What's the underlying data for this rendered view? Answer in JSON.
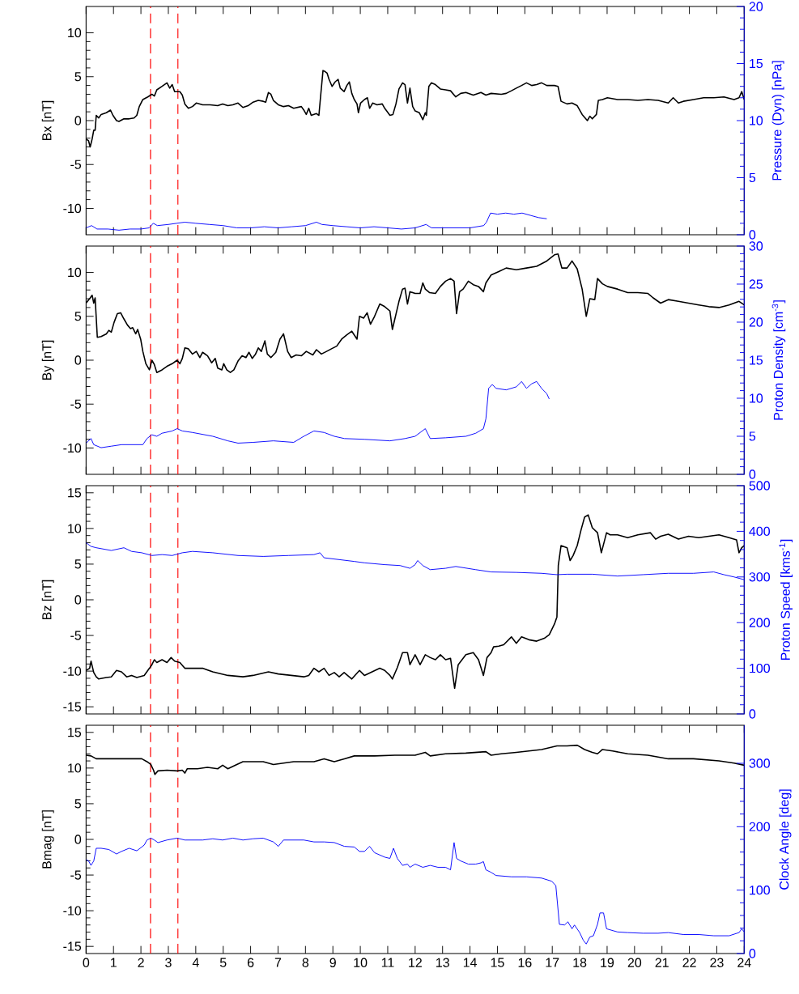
{
  "chart_data": [
    {
      "type": "line",
      "ylabel": "Bx [nT]",
      "y2label": "Pressure (Dyn) [nPa]",
      "tick_labels": "y",
      "xlim": [
        0,
        24
      ],
      "xticks": [
        0,
        1,
        2,
        3,
        4,
        5,
        6,
        7,
        8,
        9,
        10,
        11,
        12,
        13,
        14,
        15,
        16,
        17,
        18,
        19,
        20,
        21,
        22,
        23,
        24
      ],
      "ylim": [
        -13,
        13
      ],
      "yticks": [
        -10,
        -5,
        0,
        5,
        10
      ],
      "y2lim": [
        0,
        20
      ],
      "y2ticks": [
        0,
        5,
        10,
        15,
        20
      ],
      "ref_lines": [
        {
          "axis": "x",
          "value": 2.35,
          "color": "#ff0000",
          "line_style": "dashed"
        },
        {
          "axis": "x",
          "value": 3.35,
          "color": "#ff0000",
          "line_style": "dashed"
        }
      ],
      "series": [
        {
          "color": "#000000",
          "x": [
            0,
            0.09,
            0.15,
            0.22,
            0.28,
            0.33,
            0.37,
            0.46,
            0.55,
            0.74,
            0.89,
            0.98,
            1.11,
            1.2,
            1.38,
            1.57,
            1.75,
            1.85,
            1.94,
            2.07,
            2.25,
            2.4,
            2.49,
            2.58,
            2.77,
            2.95,
            3.05,
            3.14,
            3.23,
            3.42,
            3.51,
            3.6,
            3.73,
            3.88,
            4.02,
            4.25,
            4.52,
            4.8,
            4.98,
            5.17,
            5.35,
            5.54,
            5.72,
            5.91,
            6.09,
            6.28,
            6.46,
            6.55,
            6.65,
            6.74,
            6.83,
            7.01,
            7.2,
            7.38,
            7.57,
            7.85,
            7.94,
            8.03,
            8.12,
            8.21,
            8.4,
            8.49,
            8.55,
            8.64,
            8.71,
            8.79,
            8.86,
            8.97,
            9.08,
            9.19,
            9.27,
            9.41,
            9.51,
            9.6,
            9.69,
            9.78,
            9.88,
            9.93,
            10.01,
            10.15,
            10.26,
            10.34,
            10.45,
            10.61,
            10.8,
            10.89,
            11.08,
            11.19,
            11.3,
            11.41,
            11.54,
            11.63,
            11.72,
            11.81,
            11.91,
            12.0,
            12.15,
            12.28,
            12.37,
            12.41,
            12.5,
            12.59,
            12.74,
            12.92,
            13.11,
            13.29,
            13.48,
            13.66,
            13.85,
            14.12,
            14.4,
            14.58,
            14.77,
            15.14,
            15.32,
            15.51,
            15.69,
            15.88,
            16.06,
            16.25,
            16.43,
            16.61,
            16.8,
            17.08,
            17.21,
            17.32,
            17.54,
            17.72,
            17.91,
            18.09,
            18.28,
            18.37,
            18.46,
            18.61,
            18.68,
            18.83,
            19.01,
            19.38,
            19.75,
            20.12,
            20.49,
            20.86,
            21.23,
            21.41,
            21.6,
            21.78,
            22.15,
            22.52,
            22.89,
            23.26,
            23.63,
            23.81,
            23.91,
            24.0
          ],
          "values": [
            -2.1,
            -2.3,
            -3.0,
            -2.1,
            -1.1,
            -1.1,
            0.6,
            0.3,
            0.7,
            0.9,
            1.2,
            0.6,
            0,
            -0.1,
            0.2,
            0.2,
            0.3,
            0.6,
            1.6,
            2.4,
            2.7,
            3.0,
            2.8,
            3.5,
            3.9,
            4.3,
            3.7,
            4.1,
            3.3,
            3.3,
            2.9,
            1.9,
            1.4,
            1.6,
            2.0,
            1.8,
            1.8,
            1.7,
            1.9,
            1.7,
            1.8,
            2.0,
            1.5,
            1.7,
            2.1,
            2.3,
            2.2,
            2.1,
            3.2,
            3.0,
            2.3,
            1.8,
            1.6,
            1.7,
            1.4,
            1.6,
            1.2,
            0.7,
            1.4,
            0.6,
            0.8,
            0.6,
            2.7,
            5.7,
            5.6,
            5.4,
            4.7,
            3.9,
            4.4,
            4.7,
            3.7,
            3.3,
            4.0,
            4.4,
            3.1,
            2.4,
            1.9,
            0.9,
            2.0,
            2.4,
            2.6,
            1.4,
            2.0,
            1.8,
            1.9,
            1.4,
            0.6,
            0.7,
            1.9,
            3.6,
            4.3,
            4.1,
            2.0,
            3.7,
            1.6,
            1.1,
            0.9,
            0.1,
            0.9,
            0.6,
            3.9,
            4.3,
            4.1,
            3.6,
            3.5,
            3.4,
            2.7,
            3.1,
            3.2,
            2.9,
            3.2,
            2.9,
            3.1,
            3.0,
            3.1,
            3.4,
            3.7,
            4.0,
            4.3,
            4.0,
            4.1,
            4.3,
            4.0,
            4.0,
            3.9,
            2.2,
            1.9,
            2.0,
            1.7,
            0.7,
            0,
            0.5,
            0.2,
            0.7,
            2.3,
            2.4,
            2.6,
            2.4,
            2.4,
            2.3,
            2.4,
            2.3,
            2.0,
            2.6,
            2.0,
            2.2,
            2.4,
            2.6,
            2.6,
            2.7,
            2.4,
            2.6,
            3.3,
            2.4
          ]
        },
        {
          "color": "#0000ff",
          "axis": "y2",
          "x": [
            0,
            0.2,
            0.4,
            0.8,
            1.2,
            1.6,
            2.0,
            2.3,
            2.45,
            2.6,
            3.0,
            3.3,
            3.6,
            4.0,
            4.5,
            5.0,
            5.5,
            6.0,
            6.5,
            7.0,
            7.5,
            8.0,
            8.4,
            8.6,
            9.0,
            9.5,
            10.0,
            10.5,
            11.0,
            11.5,
            12.0,
            12.4,
            12.6,
            13.0,
            13.5,
            14.0,
            14.5,
            14.6,
            14.75,
            15.0,
            15.3,
            15.6,
            15.9,
            16.2,
            16.5,
            16.8
          ],
          "values": [
            0.6,
            0.8,
            0.5,
            0.5,
            0.4,
            0.5,
            0.5,
            0.6,
            1.0,
            0.8,
            0.9,
            1.0,
            1.1,
            1.0,
            0.9,
            0.8,
            0.6,
            0.6,
            0.7,
            0.6,
            0.7,
            0.8,
            1.1,
            0.9,
            0.8,
            0.7,
            0.6,
            0.7,
            0.6,
            0.5,
            0.6,
            0.9,
            0.6,
            0.6,
            0.6,
            0.6,
            0.8,
            1.1,
            1.9,
            1.8,
            1.9,
            1.8,
            1.9,
            1.7,
            1.5,
            1.4
          ]
        }
      ]
    },
    {
      "type": "line",
      "ylabel": "By [nT]",
      "y2label": "Proton Density [cm$^{-3}$]",
      "tick_labels": "y",
      "xlim": [
        0,
        24
      ],
      "xticks": [
        0,
        1,
        2,
        3,
        4,
        5,
        6,
        7,
        8,
        9,
        10,
        11,
        12,
        13,
        14,
        15,
        16,
        17,
        18,
        19,
        20,
        21,
        22,
        23,
        24
      ],
      "ylim": [
        -13,
        13
      ],
      "yticks": [
        -10,
        -5,
        0,
        5,
        10
      ],
      "y2lim": [
        0,
        30
      ],
      "y2ticks": [
        0,
        5,
        10,
        15,
        20,
        25,
        30
      ],
      "ref_lines": [
        {
          "axis": "x",
          "value": 2.35,
          "color": "#ff0000",
          "line_style": "dashed"
        },
        {
          "axis": "x",
          "value": 3.35,
          "color": "#ff0000",
          "line_style": "dashed"
        }
      ],
      "series": [
        {
          "color": "#000000",
          "x": [
            0,
            0.15,
            0.22,
            0.28,
            0.33,
            0.41,
            0.55,
            0.74,
            0.83,
            0.92,
            1.02,
            1.14,
            1.26,
            1.38,
            1.51,
            1.62,
            1.7,
            1.81,
            1.88,
            1.99,
            2.07,
            2.18,
            2.31,
            2.4,
            2.49,
            2.58,
            2.77,
            2.95,
            3.14,
            3.32,
            3.42,
            3.51,
            3.6,
            3.73,
            3.88,
            4.02,
            4.15,
            4.25,
            4.43,
            4.58,
            4.71,
            4.8,
            4.95,
            5.02,
            5.13,
            5.26,
            5.39,
            5.54,
            5.69,
            5.83,
            5.94,
            6.06,
            6.18,
            6.28,
            6.39,
            6.52,
            6.61,
            6.74,
            6.92,
            7.07,
            7.2,
            7.35,
            7.48,
            7.66,
            7.85,
            8.03,
            8.27,
            8.4,
            8.58,
            8.77,
            8.95,
            9.14,
            9.32,
            9.51,
            9.69,
            9.88,
            9.97,
            10.12,
            10.25,
            10.37,
            10.52,
            10.71,
            10.89,
            11.08,
            11.17,
            11.26,
            11.41,
            11.54,
            11.63,
            11.72,
            11.81,
            12.0,
            12.18,
            12.28,
            12.37,
            12.52,
            12.74,
            12.92,
            13.11,
            13.29,
            13.42,
            13.51,
            13.62,
            13.75,
            13.94,
            14.12,
            14.31,
            14.49,
            14.58,
            14.77,
            15.05,
            15.32,
            15.69,
            16.06,
            16.43,
            16.8,
            17.08,
            17.21,
            17.35,
            17.54,
            17.72,
            17.91,
            18.09,
            18.24,
            18.37,
            18.55,
            18.65,
            18.83,
            19.01,
            19.38,
            19.75,
            20.12,
            20.49,
            20.68,
            20.95,
            21.23,
            21.6,
            21.97,
            22.34,
            22.71,
            23.08,
            23.45,
            23.81,
            24.0
          ],
          "values": [
            6.5,
            7.1,
            7.4,
            6.5,
            7.1,
            2.6,
            2.7,
            3.0,
            3.4,
            3.2,
            4.3,
            5.3,
            5.4,
            4.7,
            4.0,
            3.6,
            3.7,
            3.0,
            3.5,
            2.4,
            1.0,
            -0.4,
            -1.1,
            0,
            -0.5,
            -1.4,
            -1.1,
            -0.7,
            -0.4,
            0,
            -0.4,
            0.2,
            1.4,
            1.3,
            0.7,
            1.0,
            0.3,
            0.9,
            0.5,
            -0.3,
            0.2,
            -0.9,
            -1.1,
            -0.4,
            -1.1,
            -1.4,
            -1.1,
            -0.1,
            0.5,
            0.3,
            0.9,
            0.2,
            0.7,
            1.4,
            1.0,
            2.2,
            0.7,
            0.3,
            0.9,
            2.4,
            3.0,
            1.0,
            0.3,
            0.6,
            0.5,
            1.0,
            0.6,
            1.2,
            0.7,
            1.0,
            1.3,
            1.6,
            2.4,
            2.9,
            3.3,
            2.4,
            5.0,
            4.8,
            5.4,
            4.1,
            5.0,
            6.4,
            6.1,
            5.6,
            3.5,
            4.7,
            6.7,
            8.1,
            8.2,
            6.4,
            7.8,
            7.6,
            7.6,
            8.8,
            8.1,
            7.7,
            7.6,
            8.4,
            9.0,
            9.3,
            9.0,
            5.3,
            7.8,
            8.1,
            9.0,
            8.6,
            8.4,
            7.8,
            8.8,
            9.7,
            10.1,
            10.5,
            10.3,
            10.5,
            10.7,
            11.3,
            12.0,
            12.1,
            10.5,
            10.5,
            11.3,
            10.4,
            8.1,
            5.0,
            7.0,
            6.9,
            9.3,
            8.7,
            8.4,
            8.1,
            7.7,
            7.7,
            7.6,
            7.1,
            6.5,
            6.9,
            6.7,
            6.5,
            6.3,
            6.1,
            6.0,
            6.3,
            6.7,
            6.3
          ]
        },
        {
          "color": "#0000ff",
          "axis": "y2",
          "x": [
            0,
            0.18,
            0.28,
            0.55,
            0.92,
            1.29,
            1.66,
            2.07,
            2.22,
            2.4,
            2.58,
            2.77,
            3.14,
            3.32,
            3.51,
            3.88,
            4.62,
            5.17,
            5.54,
            6.09,
            6.83,
            7.57,
            7.94,
            8.31,
            8.68,
            9.05,
            9.42,
            10.15,
            11.08,
            11.63,
            12.0,
            12.37,
            12.55,
            13.11,
            13.85,
            14.21,
            14.49,
            14.58,
            14.68,
            14.81,
            14.95,
            15.32,
            15.69,
            15.88,
            16.06,
            16.25,
            16.43,
            16.61,
            16.8,
            16.89
          ],
          "values": [
            4.1,
            4.7,
            3.9,
            3.5,
            3.7,
            3.9,
            3.9,
            3.9,
            4.7,
            5.2,
            5.0,
            5.4,
            5.7,
            6.0,
            5.7,
            5.5,
            5.0,
            4.4,
            4.1,
            4.2,
            4.4,
            4.2,
            5.0,
            5.7,
            5.5,
            5.0,
            4.7,
            4.6,
            4.4,
            4.7,
            5.0,
            6.0,
            4.7,
            4.8,
            5.0,
            5.4,
            6.0,
            7.3,
            11.3,
            11.8,
            11.3,
            11.1,
            11.5,
            12.2,
            11.3,
            11.9,
            12.2,
            11.3,
            10.6,
            9.9
          ]
        }
      ]
    },
    {
      "type": "line",
      "ylabel": "Bz [nT]",
      "y2label": "Proton Speed [kms$^{-1}$]",
      "tick_labels": "y",
      "xlim": [
        0,
        24
      ],
      "xticks": [
        0,
        1,
        2,
        3,
        4,
        5,
        6,
        7,
        8,
        9,
        10,
        11,
        12,
        13,
        14,
        15,
        16,
        17,
        18,
        19,
        20,
        21,
        22,
        23,
        24
      ],
      "ylim": [
        -16,
        16
      ],
      "yticks": [
        -15,
        -10,
        -5,
        0,
        5,
        10,
        15
      ],
      "y2lim": [
        0,
        500
      ],
      "y2ticks": [
        0,
        100,
        200,
        300,
        400,
        500
      ],
      "ref_lines": [
        {
          "axis": "x",
          "value": 2.35,
          "color": "#ff0000",
          "line_style": "dashed"
        },
        {
          "axis": "x",
          "value": 3.35,
          "color": "#ff0000",
          "line_style": "dashed"
        }
      ],
      "series": [
        {
          "color": "#000000",
          "x": [
            0,
            0.13,
            0.18,
            0.28,
            0.37,
            0.46,
            0.74,
            0.92,
            1.11,
            1.29,
            1.48,
            1.66,
            1.85,
            2.12,
            2.31,
            2.4,
            2.49,
            2.58,
            2.77,
            2.95,
            3.1,
            3.23,
            3.42,
            3.6,
            3.88,
            4.25,
            4.62,
            5.17,
            5.72,
            6.09,
            6.65,
            7.01,
            7.48,
            7.94,
            8.12,
            8.31,
            8.49,
            8.68,
            8.86,
            9.05,
            9.23,
            9.41,
            9.69,
            9.97,
            10.15,
            10.43,
            10.71,
            10.89,
            11.08,
            11.17,
            11.35,
            11.54,
            11.72,
            11.81,
            12.0,
            12.18,
            12.37,
            12.55,
            12.74,
            12.92,
            13.11,
            13.29,
            13.44,
            13.57,
            13.85,
            14.12,
            14.31,
            14.49,
            14.62,
            14.77,
            14.86,
            15.05,
            15.23,
            15.51,
            15.69,
            15.88,
            16.15,
            16.43,
            16.71,
            16.89,
            17.08,
            17.17,
            17.22,
            17.32,
            17.54,
            17.65,
            17.76,
            17.91,
            18.05,
            18.18,
            18.31,
            18.46,
            18.65,
            18.79,
            18.98,
            19.11,
            19.38,
            19.75,
            20.12,
            20.58,
            20.77,
            20.95,
            21.23,
            21.6,
            21.97,
            22.34,
            22.71,
            23.08,
            23.45,
            23.72,
            23.81,
            23.91,
            24.0
          ],
          "values": [
            -9.9,
            -9.6,
            -8.6,
            -10.2,
            -10.8,
            -11.1,
            -10.9,
            -10.8,
            -9.9,
            -10.1,
            -10.8,
            -10.6,
            -10.9,
            -10.6,
            -9.6,
            -9.1,
            -8.4,
            -8.8,
            -8.4,
            -8.8,
            -8.1,
            -8.6,
            -8.8,
            -9.6,
            -9.6,
            -9.6,
            -10.1,
            -10.6,
            -10.8,
            -10.6,
            -10.1,
            -10.4,
            -10.6,
            -10.8,
            -10.6,
            -9.6,
            -10.1,
            -9.6,
            -10.6,
            -10.2,
            -10.8,
            -10.2,
            -11.1,
            -9.9,
            -10.6,
            -10.1,
            -9.6,
            -9.9,
            -10.6,
            -11.1,
            -9.5,
            -7.4,
            -7.4,
            -9.1,
            -7.7,
            -9.1,
            -7.7,
            -8.1,
            -8.4,
            -7.7,
            -8.4,
            -8.2,
            -12.4,
            -9.1,
            -7.7,
            -7.4,
            -8.4,
            -10.6,
            -8.1,
            -7.4,
            -6.6,
            -6.5,
            -6.3,
            -5.2,
            -6.1,
            -5.2,
            -5.6,
            -5.8,
            -5.4,
            -4.9,
            -3.4,
            -2.4,
            4.8,
            7.6,
            7.3,
            5.5,
            6.2,
            7.6,
            9.8,
            11.6,
            11.9,
            10.1,
            9.4,
            6.6,
            9.4,
            9.1,
            9.1,
            8.7,
            9.1,
            9.4,
            8.5,
            8.9,
            9.2,
            8.5,
            8.9,
            8.7,
            8.9,
            9.1,
            8.7,
            8.4,
            6.6,
            7.3,
            7.6
          ]
        },
        {
          "color": "#0000ff",
          "axis": "y2",
          "x": [
            0,
            0.18,
            0.37,
            0.92,
            1.38,
            1.66,
            2.03,
            2.4,
            2.77,
            3.14,
            3.51,
            3.88,
            4.62,
            5.54,
            6.46,
            7.38,
            8.31,
            8.53,
            8.68,
            9.23,
            9.78,
            10.15,
            10.89,
            11.45,
            11.81,
            12.0,
            12.09,
            12.28,
            12.55,
            13.11,
            13.48,
            14.21,
            14.77,
            15.69,
            16.61,
            17.17,
            17.54,
            18.46,
            19.38,
            20.31,
            21.23,
            22.15,
            22.89,
            23.26,
            23.63,
            24.0
          ],
          "values": [
            375,
            367,
            364,
            358,
            364,
            356,
            353,
            347,
            349,
            347,
            353,
            356,
            353,
            347,
            345,
            347,
            349,
            353,
            342,
            338,
            334,
            331,
            327,
            325,
            319,
            327,
            336,
            325,
            316,
            319,
            323,
            316,
            311,
            310,
            308,
            305,
            306,
            306,
            302,
            305,
            308,
            308,
            311,
            305,
            300,
            294
          ]
        }
      ]
    },
    {
      "type": "line",
      "ylabel": "Bmag [nT]",
      "y2label": "Clock Angle [deg]",
      "xlim": [
        0,
        24
      ],
      "xticks": [
        0,
        1,
        2,
        3,
        4,
        5,
        6,
        7,
        8,
        9,
        10,
        11,
        12,
        13,
        14,
        15,
        16,
        17,
        18,
        19,
        20,
        21,
        22,
        23,
        24
      ],
      "ylim": [
        -16,
        16
      ],
      "yticks": [
        -15,
        -10,
        -5,
        0,
        5,
        10,
        15
      ],
      "y2lim": [
        0,
        360
      ],
      "y2ticks": [
        0,
        100,
        200,
        300
      ],
      "ref_lines": [
        {
          "axis": "x",
          "value": 2.35,
          "color": "#ff0000",
          "line_style": "dashed"
        },
        {
          "axis": "x",
          "value": 3.35,
          "color": "#ff0000",
          "line_style": "dashed"
        }
      ],
      "series": [
        {
          "color": "#000000",
          "x": [
            0,
            0.18,
            0.37,
            0.92,
            1.66,
            2.03,
            2.22,
            2.36,
            2.46,
            2.51,
            2.62,
            2.95,
            3.32,
            3.51,
            3.6,
            3.69,
            4.06,
            4.43,
            4.8,
            4.98,
            5.17,
            5.45,
            5.72,
            6.09,
            6.46,
            6.83,
            7.2,
            7.57,
            8.31,
            8.68,
            9.05,
            9.42,
            9.78,
            10.52,
            11.26,
            12.0,
            12.37,
            12.55,
            13.11,
            13.85,
            14.58,
            14.77,
            15.14,
            15.69,
            16.61,
            17.17,
            17.54,
            17.91,
            18.18,
            18.46,
            18.65,
            18.83,
            19.2,
            19.75,
            20.49,
            21.23,
            22.15,
            23.08,
            23.63,
            24.0
          ],
          "values": [
            11.8,
            11.7,
            11.3,
            11.3,
            11.3,
            11.3,
            10.9,
            10.5,
            9.7,
            9.1,
            9.6,
            9.7,
            9.6,
            9.7,
            9.3,
            9.9,
            9.9,
            10.1,
            9.9,
            10.4,
            9.9,
            10.4,
            10.9,
            10.9,
            10.9,
            10.5,
            10.7,
            10.9,
            10.9,
            11.3,
            10.9,
            11.3,
            11.7,
            11.7,
            11.8,
            11.8,
            12.2,
            11.7,
            12.0,
            12.1,
            12.3,
            11.8,
            12.0,
            12.2,
            12.6,
            13.1,
            13.1,
            13.2,
            12.6,
            12.2,
            12.0,
            12.6,
            12.4,
            12.0,
            11.8,
            11.3,
            11.3,
            11.0,
            10.7,
            10.4
          ]
        },
        {
          "color": "#0000ff",
          "axis": "y2",
          "x": [
            0,
            0.09,
            0.18,
            0.28,
            0.37,
            0.55,
            0.83,
            1.11,
            1.29,
            1.57,
            1.85,
            2.03,
            2.12,
            2.22,
            2.36,
            2.49,
            2.62,
            2.95,
            3.32,
            3.6,
            3.88,
            4.25,
            4.62,
            4.98,
            5.35,
            5.72,
            6.09,
            6.46,
            6.83,
            7.01,
            7.2,
            7.57,
            7.94,
            8.31,
            8.68,
            9.05,
            9.42,
            9.78,
            9.97,
            10.15,
            10.34,
            10.52,
            10.89,
            11.08,
            11.21,
            11.35,
            11.54,
            11.72,
            11.81,
            12.0,
            12.28,
            12.55,
            12.83,
            13.11,
            13.29,
            13.42,
            13.51,
            13.66,
            13.94,
            14.21,
            14.4,
            14.49,
            14.58,
            14.77,
            14.95,
            15.51,
            16.06,
            16.61,
            16.98,
            17.13,
            17.26,
            17.45,
            17.57,
            17.72,
            17.81,
            18.0,
            18.13,
            18.24,
            18.37,
            18.5,
            18.65,
            18.74,
            18.87,
            18.98,
            19.38,
            19.75,
            20.31,
            20.86,
            21.23,
            21.78,
            22.34,
            22.89,
            23.45,
            23.81,
            23.91,
            24.0
          ],
          "values": [
            148,
            146,
            139,
            146,
            166,
            166,
            164,
            157,
            161,
            166,
            162,
            168,
            171,
            179,
            182,
            179,
            175,
            179,
            182,
            179,
            179,
            179,
            181,
            179,
            182,
            179,
            181,
            182,
            176,
            169,
            179,
            179,
            179,
            176,
            176,
            175,
            169,
            168,
            161,
            161,
            169,
            159,
            152,
            150,
            166,
            150,
            139,
            141,
            136,
            141,
            136,
            139,
            136,
            136,
            132,
            175,
            150,
            146,
            141,
            141,
            143,
            145,
            132,
            128,
            123,
            121,
            121,
            119,
            114,
            107,
            46,
            45,
            50,
            39,
            45,
            33,
            21,
            15,
            26,
            28,
            46,
            64,
            64,
            39,
            34,
            33,
            32,
            32,
            33,
            30,
            30,
            28,
            28,
            33,
            39,
            34
          ]
        }
      ]
    }
  ]
}
